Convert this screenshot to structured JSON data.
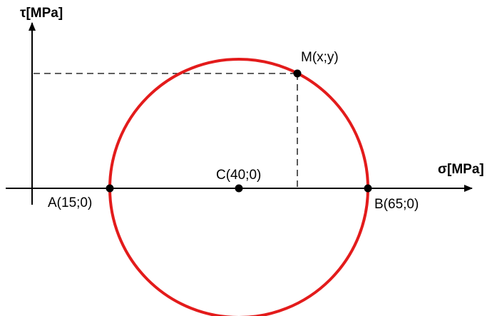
{
  "axes": {
    "tau_label": "τ[MPa]",
    "sigma_label": "σ[MPa]"
  },
  "points": {
    "A": {
      "label": "A(15;0)",
      "sigma": 15,
      "tau": 0
    },
    "B": {
      "label": "B(65;0)",
      "sigma": 65,
      "tau": 0
    },
    "C": {
      "label": "C(40;0)",
      "sigma": 40,
      "tau": 0
    },
    "M": {
      "label": "M(x;y)"
    }
  },
  "circle": {
    "center_sigma": 40,
    "radius": 25,
    "color": "#e31b1b"
  },
  "colors": {
    "axis": "#000000",
    "point": "#000000",
    "dashed": "#000000"
  }
}
